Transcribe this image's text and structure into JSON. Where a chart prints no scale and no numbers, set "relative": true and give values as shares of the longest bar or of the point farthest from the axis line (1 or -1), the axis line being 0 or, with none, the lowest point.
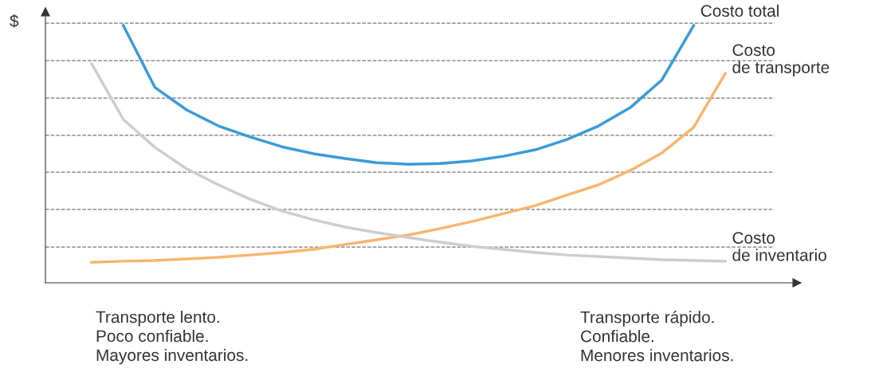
{
  "chart_data": {
    "type": "line",
    "relative": true,
    "ylabel": "$",
    "categories": [
      null,
      null,
      null,
      null,
      null,
      null,
      null,
      null,
      null,
      null,
      null,
      null,
      null,
      null,
      null,
      null,
      null,
      null,
      null,
      null,
      null
    ],
    "series": [
      {
        "name": "Costo total",
        "color": "#3a9ad9",
        "values": [
          null,
          1.0,
          0.759,
          0.672,
          0.61,
          0.567,
          0.529,
          0.502,
          0.483,
          0.467,
          0.461,
          0.464,
          0.474,
          0.492,
          0.517,
          0.557,
          0.61,
          0.681,
          0.789,
          1.0,
          null
        ]
      },
      {
        "name": "Costo\nde transporte",
        "color": "#f7b56d",
        "values": [
          0.08,
          0.084,
          0.087,
          0.093,
          0.099,
          0.108,
          0.118,
          0.13,
          0.149,
          0.167,
          0.186,
          0.211,
          0.238,
          0.269,
          0.3,
          0.341,
          0.381,
          0.437,
          0.505,
          0.604,
          0.814
        ]
      },
      {
        "name": "Costo\nde inventario",
        "color": "#cdcdcd",
        "values": [
          0.851,
          0.635,
          0.526,
          0.443,
          0.381,
          0.325,
          0.279,
          0.245,
          0.217,
          0.195,
          0.176,
          0.158,
          0.142,
          0.13,
          0.118,
          0.108,
          0.102,
          0.096,
          0.09,
          0.087,
          0.084
        ]
      }
    ],
    "ref_lines": [
      {
        "axis": "y",
        "value": 1.009,
        "color": "#777777",
        "line_style": "dashed"
      },
      {
        "axis": "y",
        "value": 0.864,
        "color": "#777777",
        "line_style": "dashed"
      },
      {
        "axis": "y",
        "value": 0.718,
        "color": "#777777",
        "line_style": "dashed"
      },
      {
        "axis": "y",
        "value": 0.573,
        "color": "#777777",
        "line_style": "dashed"
      },
      {
        "axis": "y",
        "value": 0.43,
        "color": "#777777",
        "line_style": "dashed"
      },
      {
        "axis": "y",
        "value": 0.285,
        "color": "#777777",
        "line_style": "dashed"
      },
      {
        "axis": "y",
        "value": 0.139,
        "color": "#777777",
        "line_style": "dashed"
      }
    ],
    "annotations": [
      "Transporte lento.\nPoco confiable.\nMayores inventarios.",
      "Transporte rápido.\nConfiable.\nMenores inventarios."
    ],
    "legend": false,
    "grid": false,
    "marker": "none",
    "line_style": "solid"
  }
}
